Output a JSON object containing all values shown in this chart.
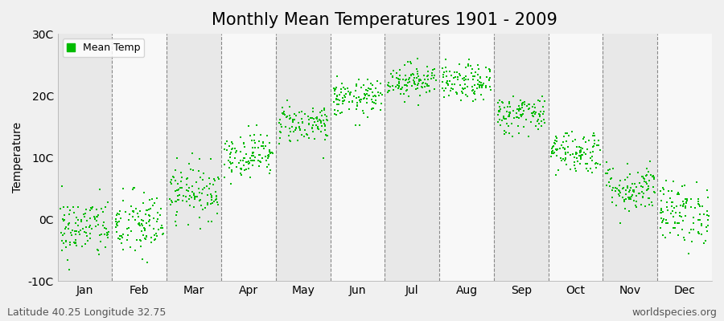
{
  "title": "Monthly Mean Temperatures 1901 - 2009",
  "ylabel": "Temperature",
  "bottom_left_text": "Latitude 40.25 Longitude 32.75",
  "bottom_right_text": "worldspecies.org",
  "legend_label": "Mean Temp",
  "ylim": [
    -10,
    30
  ],
  "yticks": [
    -10,
    0,
    10,
    20,
    30
  ],
  "ytick_labels": [
    "-10C",
    "0C",
    "10C",
    "20C",
    "30C"
  ],
  "months": [
    "Jan",
    "Feb",
    "Mar",
    "Apr",
    "May",
    "Jun",
    "Jul",
    "Aug",
    "Sep",
    "Oct",
    "Nov",
    "Dec"
  ],
  "mean_temps": [
    -1.5,
    -1.0,
    4.5,
    10.5,
    15.5,
    19.5,
    22.5,
    22.0,
    17.0,
    11.0,
    5.0,
    1.0
  ],
  "std_temps": [
    2.5,
    2.8,
    2.2,
    1.8,
    1.6,
    1.5,
    1.4,
    1.5,
    1.6,
    1.8,
    2.0,
    2.5
  ],
  "n_years": 109,
  "dot_color": "#00bb00",
  "dot_size": 3,
  "background_color": "#f0f0f0",
  "band_color_odd": "#e8e8e8",
  "band_color_even": "#f8f8f8",
  "grid_color": "#888888",
  "title_fontsize": 15,
  "axis_label_fontsize": 10,
  "tick_fontsize": 10,
  "annotation_fontsize": 9
}
